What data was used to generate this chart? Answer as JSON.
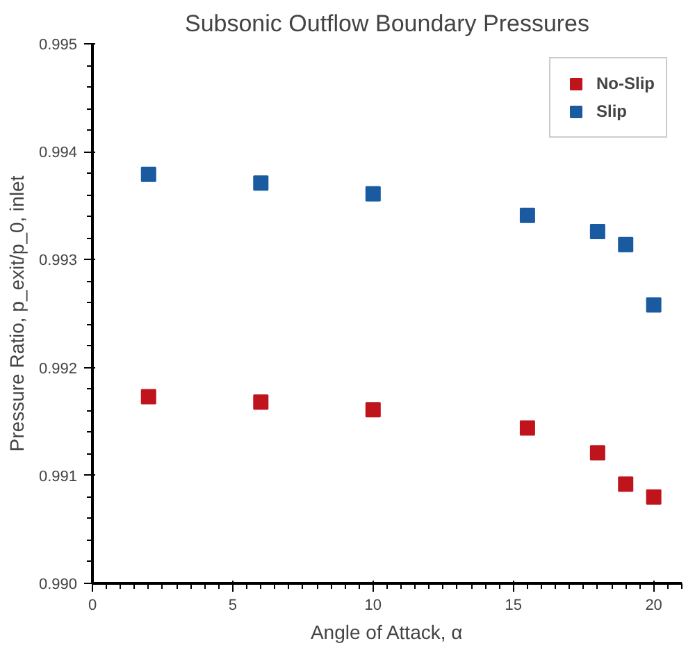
{
  "chart_data": {
    "type": "scatter",
    "title": "Subsonic Outflow Boundary Pressures",
    "xlabel": "Angle of Attack, α",
    "ylabel": "Pressure Ratio, p_exit/p_0, inlet",
    "x": [
      2,
      6,
      10,
      15.5,
      18,
      19,
      20
    ],
    "series": [
      {
        "name": "No-Slip",
        "color": "#c0141c",
        "values": [
          0.99173,
          0.99168,
          0.99161,
          0.99144,
          0.99121,
          0.99092,
          0.9908
        ]
      },
      {
        "name": "Slip",
        "color": "#1a5aa0",
        "values": [
          0.99379,
          0.99371,
          0.99361,
          0.99341,
          0.99326,
          0.99314,
          0.99258
        ]
      }
    ],
    "xlim": [
      0,
      21
    ],
    "xticks": [
      0,
      5,
      10,
      15,
      20
    ],
    "ylim": [
      0.99,
      0.995
    ],
    "yticks": [
      {
        "value": 0.99,
        "label": "0.990"
      },
      0.991,
      0.992,
      0.993,
      0.994,
      0.995
    ],
    "marker": "square",
    "legend": "top right",
    "grid": false
  }
}
